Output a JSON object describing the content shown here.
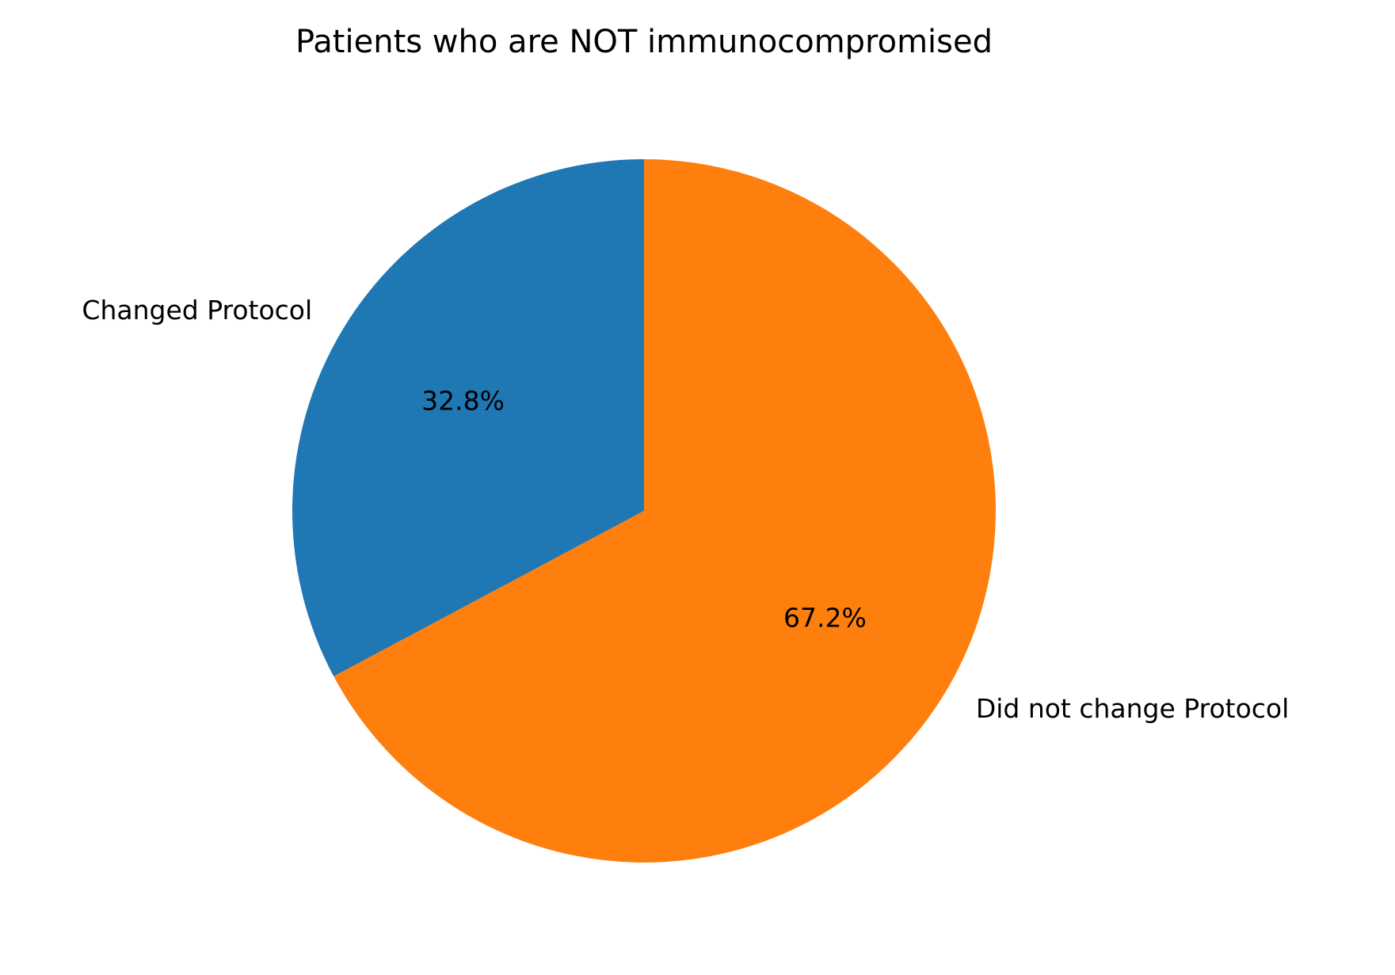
{
  "chart_data": {
    "type": "pie",
    "title": "Patients who are NOT immunocompromised",
    "start_angle_deg": 90,
    "direction": "counterclockwise",
    "slices": [
      {
        "label": "Changed Protocol",
        "value": 32.8,
        "pct_text": "32.8%",
        "color": "#1f77b4"
      },
      {
        "label": "Did not change Protocol",
        "value": 67.2,
        "pct_text": "67.2%",
        "color": "#ff7f0e"
      }
    ]
  }
}
